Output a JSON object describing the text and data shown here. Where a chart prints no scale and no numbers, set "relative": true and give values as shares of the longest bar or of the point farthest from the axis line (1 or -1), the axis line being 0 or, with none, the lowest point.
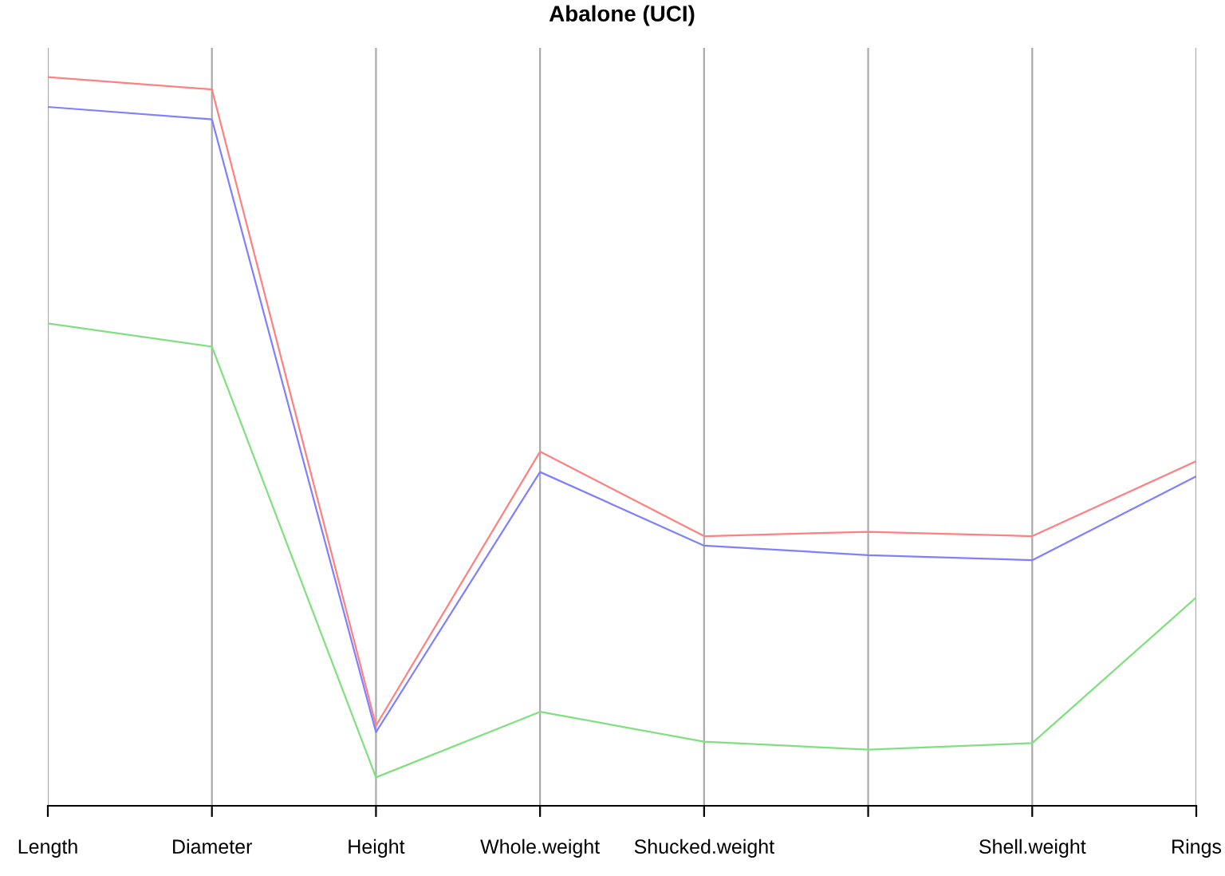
{
  "chart_data": {
    "type": "line",
    "title": "Abalone (UCI)",
    "relative": true,
    "grid": "x",
    "marker": "none",
    "line_style": "solid",
    "categories": [
      "Length",
      "Diameter",
      "Height",
      "Whole.weight",
      "Shucked.weight",
      null,
      "Shell.weight",
      "Rings"
    ],
    "series": [
      {
        "color": "#ff8080",
        "values": [
          1,
          0.983,
          0.11,
          0.486,
          0.37,
          0.376,
          0.37,
          0.473
        ]
      },
      {
        "color": "#8080ff",
        "values": [
          0.959,
          0.942,
          0.101,
          0.458,
          0.357,
          0.344,
          0.337,
          0.452
        ]
      },
      {
        "color": "#80e080",
        "values": [
          0.662,
          0.63,
          0.039,
          0.129,
          0.088,
          0.077,
          0.086,
          0.286
        ]
      }
    ]
  }
}
